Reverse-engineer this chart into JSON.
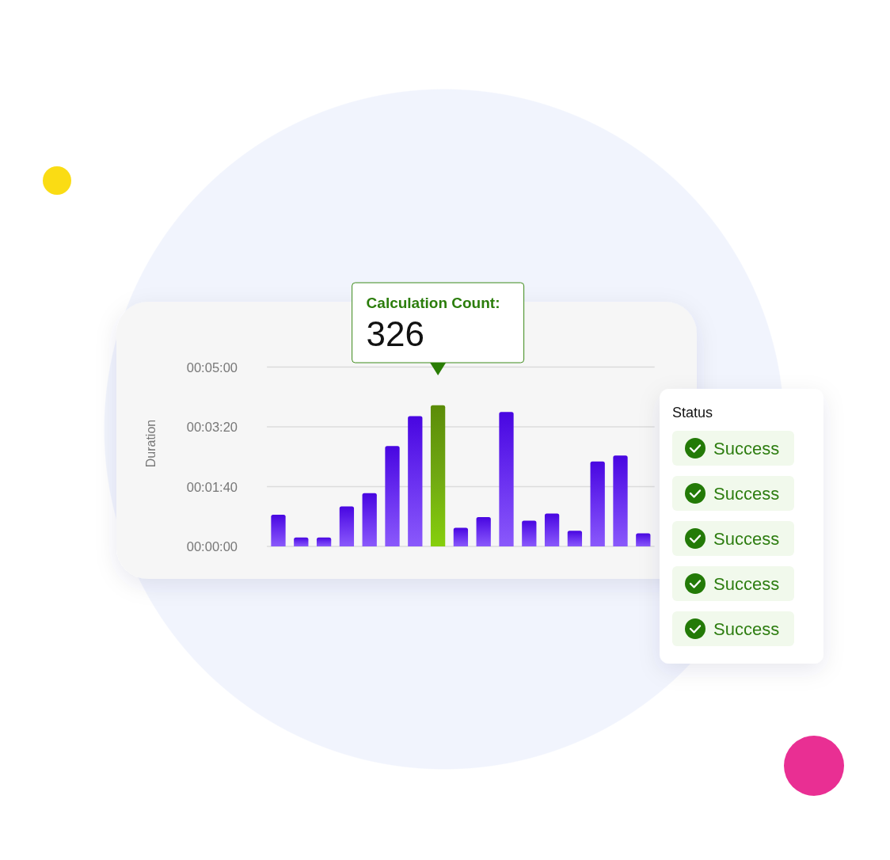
{
  "chart_data": [
    {
      "type": "bar",
      "ylabel": "Duration",
      "categories": [
        null,
        null,
        null,
        null,
        null,
        null,
        null,
        null,
        null,
        null,
        null,
        null,
        null,
        null,
        null,
        null,
        null
      ],
      "values": [
        53,
        15,
        15,
        67,
        89,
        168,
        218,
        236,
        31,
        49,
        225,
        43,
        55,
        26,
        142,
        152,
        22
      ],
      "colors": [
        "#6a30f0",
        "#6a30f0",
        "#6a30f0",
        "#6a30f0",
        "#6a30f0",
        "#6a30f0",
        "#6a30f0",
        "#70a812",
        "#6a30f0",
        "#6a30f0",
        "#6a30f0",
        "#6a30f0",
        "#6a30f0",
        "#6a30f0",
        "#6a30f0",
        "#6a30f0",
        "#6a30f0"
      ],
      "ylim": [
        0,
        300
      ],
      "yticks": [
        {
          "value": 0,
          "label": "00:00:00"
        },
        {
          "value": 100,
          "label": "00:01:40"
        },
        {
          "value": 200,
          "label": "00:03:20"
        },
        {
          "value": 300,
          "label": "00:05:00"
        }
      ],
      "grid": "y",
      "annotations": [
        "Calculation Count:",
        "326"
      ]
    },
    {
      "type": "other",
      "title": "Status",
      "annotations": [
        "Success",
        "Success",
        "Success",
        "Success",
        "Success"
      ]
    }
  ]
}
